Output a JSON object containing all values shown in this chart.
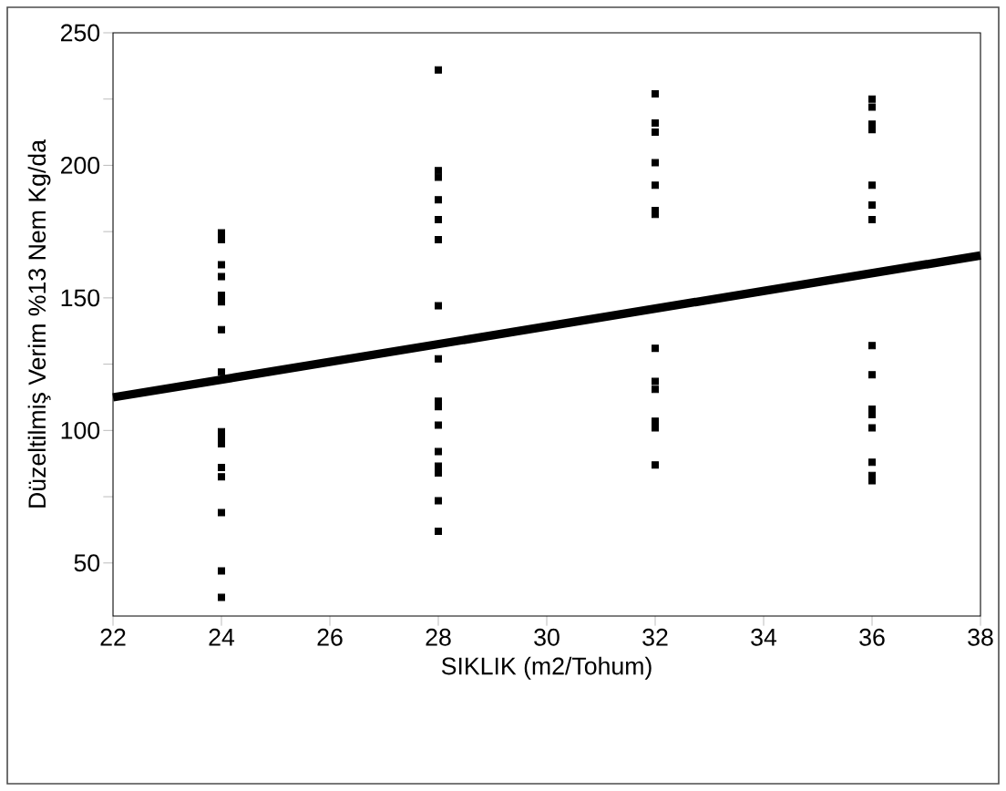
{
  "chart_data": {
    "type": "scatter",
    "xlabel": "SIKLIK (m2/Tohum)",
    "ylabel": "Düzeltilmiş Verim %13 Nem Kg/da",
    "xlim": [
      22,
      38
    ],
    "ylim": [
      30,
      250
    ],
    "xticks": [
      22,
      24,
      26,
      28,
      30,
      32,
      34,
      36,
      38
    ],
    "yticks": [
      {
        "value": 50,
        "label": "50"
      },
      {
        "value": 75,
        "label": null
      },
      {
        "value": 100,
        "label": "100"
      },
      {
        "value": 125,
        "label": null
      },
      {
        "value": 150,
        "label": "150"
      },
      {
        "value": 175,
        "label": null
      },
      {
        "value": 200,
        "label": "200"
      },
      {
        "value": 225,
        "label": null
      },
      {
        "value": 250,
        "label": "250"
      }
    ],
    "marker": "square",
    "series": [
      {
        "color": "#000000",
        "x": [
          24,
          24,
          24,
          24,
          24,
          24,
          24,
          24,
          24,
          24,
          24,
          24,
          24,
          24,
          24,
          24,
          28,
          28,
          28,
          28,
          28,
          28,
          28,
          28,
          28,
          28,
          28,
          28,
          28,
          28,
          28,
          28,
          32,
          32,
          32,
          32,
          32,
          32,
          32,
          32,
          32,
          32,
          32,
          32,
          32,
          36,
          36,
          36,
          36,
          36,
          36,
          36,
          36,
          36,
          36,
          36,
          36,
          36,
          36,
          36
        ],
        "values": [
          174.5,
          172,
          162.5,
          158,
          151,
          148.5,
          138,
          122,
          99.5,
          97.5,
          95,
          86,
          82.5,
          69,
          47,
          37,
          236,
          198,
          195.5,
          187,
          179.5,
          172,
          147,
          127,
          111,
          109,
          102,
          92,
          86.5,
          84,
          73.5,
          62,
          227,
          216,
          212.5,
          201,
          192.5,
          183,
          181.5,
          131,
          118.5,
          115.5,
          103.5,
          101,
          87,
          225,
          222,
          215.5,
          213.5,
          192.5,
          185,
          179.5,
          132,
          121,
          108,
          106,
          101,
          88,
          83,
          81
        ]
      },
      {
        "type": "line",
        "color": "#000000",
        "x": [
          22,
          38
        ],
        "values": [
          112.5,
          166
        ],
        "marker": "none"
      }
    ]
  }
}
